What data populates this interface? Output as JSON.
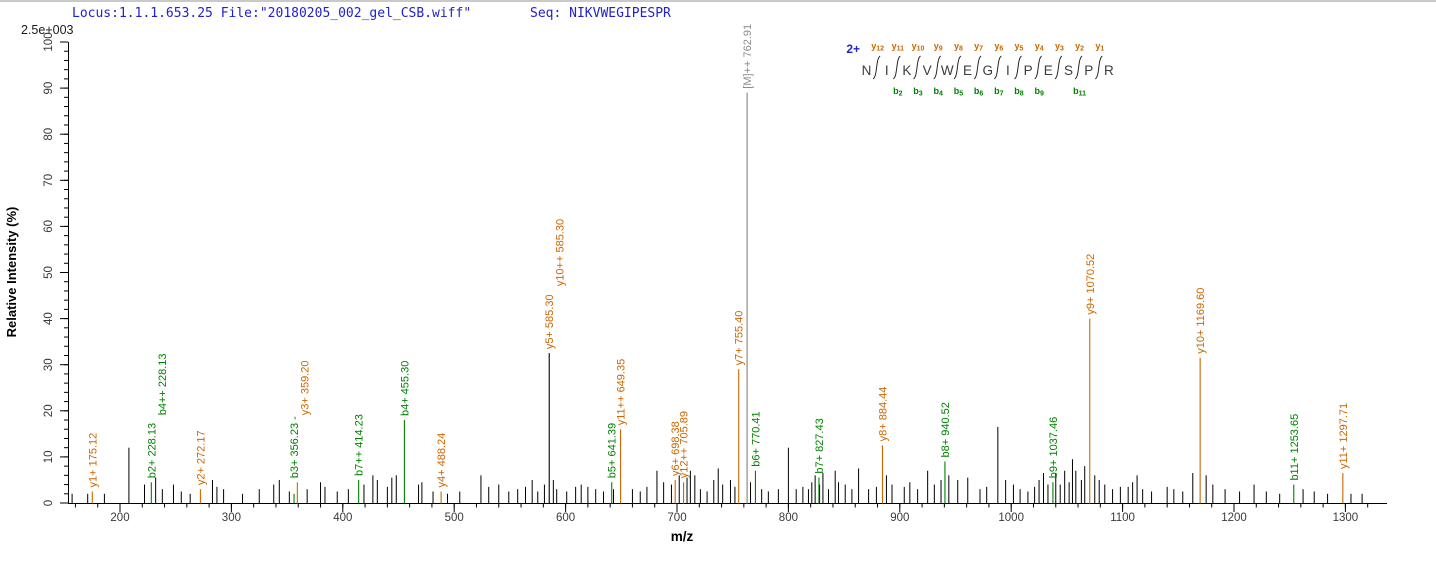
{
  "header": {
    "locus_file": "Locus:1.1.1.653.25 File:\"20180205_002_gel_CSB.wiff\"",
    "seq_line": "Seq: NIKVWEGIPESPR",
    "text_color": "#2222cc"
  },
  "scale_label": "2.5e+003",
  "colors": {
    "y_ion": "#cc6600",
    "b_ion": "#008000",
    "unassigned": "#000000",
    "precursor": "#8c8c8c",
    "axis": "#000000",
    "tick_text": "#3a3a3a",
    "residue_text": "#3c3c3c",
    "charge_text": "#2222cc"
  },
  "fragment_map": {
    "charge_label": "2+",
    "residues": [
      "N",
      "I",
      "K",
      "V",
      "W",
      "E",
      "G",
      "I",
      "P",
      "E",
      "S",
      "P",
      "R"
    ],
    "top_ions": [
      "y12",
      "y11",
      "y10",
      "y9",
      "y8",
      "y7",
      "y6",
      "y5",
      "y4",
      "y3",
      "y2",
      "y1"
    ],
    "bottom_ions": [
      "",
      "b2",
      "b3",
      "b4",
      "b5",
      "b6",
      "b7",
      "b8",
      "b9",
      "",
      "b11",
      ""
    ]
  },
  "chart_data": {
    "type": "bar",
    "subtype": "ms2_fragment_spectrum",
    "title": "",
    "xlabel": "m/z",
    "ylabel": "Relative  Intensity (%)",
    "x_range": [
      153.3,
      1337
    ],
    "ylim": [
      0,
      100
    ],
    "x_ticks": [
      200,
      300,
      400,
      500,
      600,
      700,
      800,
      900,
      1000,
      1100,
      1200,
      1300
    ],
    "x_minor_step": 20,
    "y_ticks": [
      0,
      10,
      20,
      30,
      40,
      50,
      60,
      70,
      80,
      90,
      100
    ],
    "y_minor_step": 2,
    "grid": false,
    "legend_position": "none",
    "precursor": {
      "mz": 762.91,
      "label": "[M]++ 762.91",
      "line_top_pct": 89
    },
    "annotated_peaks": [
      {
        "mz": 175.12,
        "pct": 2.5,
        "series": "y",
        "anchor_pct": 2.5,
        "labels": [
          {
            "text": "y1+ 175.12",
            "series": "y"
          }
        ]
      },
      {
        "mz": 228.13,
        "pct": 4.5,
        "series": "b",
        "anchor_pct": 4.5,
        "labels": [
          {
            "text": "b2+ 228.13",
            "series": "b"
          },
          {
            "text": "b4++ 228.13",
            "series": "b"
          }
        ]
      },
      {
        "mz": 272.17,
        "pct": 3.0,
        "series": "y",
        "anchor_pct": 3.0,
        "labels": [
          {
            "text": "y2+ 272.17",
            "series": "y"
          }
        ]
      },
      {
        "mz": 356.23,
        "pct": 2.0,
        "series": "b",
        "anchor_pct": 4.5,
        "labels": [
          {
            "text": "b3+ 356.23 -",
            "series": "b"
          },
          {
            "text": "y3+ 359.20",
            "series": "y"
          }
        ]
      },
      {
        "mz": 359.2,
        "pct": 4.5,
        "series": "y",
        "anchor_pct": 4.5,
        "labels": []
      },
      {
        "mz": 414.23,
        "pct": 5.0,
        "series": "b",
        "anchor_pct": 5.0,
        "labels": [
          {
            "text": "b7++ 414.23",
            "series": "b"
          }
        ]
      },
      {
        "mz": 455.3,
        "pct": 18.0,
        "series": "b",
        "anchor_pct": 18.0,
        "labels": [
          {
            "text": "b4+ 455.30",
            "series": "b"
          }
        ]
      },
      {
        "mz": 488.24,
        "pct": 2.5,
        "series": "y",
        "anchor_pct": 2.5,
        "labels": [
          {
            "text": "y4+ 488.24",
            "series": "y"
          }
        ]
      },
      {
        "mz": 585.3,
        "pct": 32.5,
        "series": "both",
        "anchor_pct": 32.5,
        "labels": [
          {
            "text": "y5+ 585.30",
            "series": "y"
          },
          {
            "text": "y10++ 585.30",
            "series": "y"
          }
        ]
      },
      {
        "mz": 641.39,
        "pct": 4.5,
        "series": "b",
        "anchor_pct": 4.5,
        "labels": [
          {
            "text": "b5+ 641.39",
            "series": "b"
          }
        ]
      },
      {
        "mz": 649.35,
        "pct": 16.0,
        "series": "y",
        "anchor_pct": 16.0,
        "labels": [
          {
            "text": "y11++ 649.35",
            "series": "y"
          }
        ]
      },
      {
        "mz": 698.38,
        "pct": 5.0,
        "series": "y",
        "anchor_pct": 5.0,
        "labels": [
          {
            "text": "y6+ 698.38",
            "series": "y"
          }
        ]
      },
      {
        "mz": 705.89,
        "pct": 4.5,
        "series": "y",
        "anchor_pct": 4.5,
        "labels": [
          {
            "text": "y12++ 705.89",
            "series": "y"
          }
        ]
      },
      {
        "mz": 755.4,
        "pct": 29.0,
        "series": "y",
        "anchor_pct": 29.0,
        "labels": [
          {
            "text": "y7+ 755.40",
            "series": "y"
          }
        ]
      },
      {
        "mz": 770.41,
        "pct": 7.0,
        "series": "b",
        "anchor_pct": 7.0,
        "labels": [
          {
            "text": "b6+ 770.41",
            "series": "b"
          }
        ]
      },
      {
        "mz": 827.43,
        "pct": 5.5,
        "series": "b",
        "anchor_pct": 5.5,
        "labels": [
          {
            "text": "b7+ 827.43",
            "series": "b"
          }
        ]
      },
      {
        "mz": 884.44,
        "pct": 12.5,
        "series": "y",
        "anchor_pct": 12.5,
        "labels": [
          {
            "text": "y8+ 884.44",
            "series": "y"
          }
        ]
      },
      {
        "mz": 940.52,
        "pct": 9.0,
        "series": "b",
        "anchor_pct": 9.0,
        "labels": [
          {
            "text": "b8+ 940.52",
            "series": "b"
          }
        ]
      },
      {
        "mz": 1037.46,
        "pct": 4.5,
        "series": "b",
        "anchor_pct": 4.5,
        "labels": [
          {
            "text": "b9+ 1037.46",
            "series": "b"
          }
        ]
      },
      {
        "mz": 1070.52,
        "pct": 40.0,
        "series": "y",
        "anchor_pct": 40.0,
        "labels": [
          {
            "text": "y9+ 1070.52",
            "series": "y"
          }
        ]
      },
      {
        "mz": 1169.6,
        "pct": 31.5,
        "series": "y",
        "anchor_pct": 31.5,
        "labels": [
          {
            "text": "y10+ 1169.60",
            "series": "y"
          }
        ]
      },
      {
        "mz": 1253.65,
        "pct": 4.0,
        "series": "b",
        "anchor_pct": 4.0,
        "labels": [
          {
            "text": "b11+ 1253.65",
            "series": "b"
          }
        ]
      },
      {
        "mz": 1297.71,
        "pct": 6.5,
        "series": "y",
        "anchor_pct": 6.5,
        "labels": [
          {
            "text": "y11+ 1297.71",
            "series": "y"
          }
        ]
      }
    ],
    "unassigned_peaks": [
      [
        157,
        2
      ],
      [
        171,
        2
      ],
      [
        186,
        2
      ],
      [
        208,
        12
      ],
      [
        222,
        4
      ],
      [
        232,
        5.5
      ],
      [
        238,
        3
      ],
      [
        248,
        4
      ],
      [
        255,
        2.5
      ],
      [
        263,
        2
      ],
      [
        283,
        5
      ],
      [
        287,
        3.5
      ],
      [
        293,
        3
      ],
      [
        310,
        2
      ],
      [
        325,
        3
      ],
      [
        338,
        4
      ],
      [
        343,
        5
      ],
      [
        352,
        2.5
      ],
      [
        368,
        3
      ],
      [
        380,
        4.5
      ],
      [
        384,
        3.5
      ],
      [
        395,
        2.5
      ],
      [
        405,
        3
      ],
      [
        419,
        4
      ],
      [
        427,
        6
      ],
      [
        431,
        5
      ],
      [
        440,
        3.5
      ],
      [
        444,
        5.5
      ],
      [
        448,
        6
      ],
      [
        468,
        4
      ],
      [
        471,
        4.5
      ],
      [
        481,
        2.5
      ],
      [
        494,
        2
      ],
      [
        505,
        2.5
      ],
      [
        524,
        6
      ],
      [
        531,
        3.5
      ],
      [
        540,
        4
      ],
      [
        549,
        2.5
      ],
      [
        557,
        3
      ],
      [
        564,
        3.5
      ],
      [
        570,
        5
      ],
      [
        575,
        2.5
      ],
      [
        581,
        4
      ],
      [
        589,
        5
      ],
      [
        592,
        3
      ],
      [
        601,
        2.5
      ],
      [
        609,
        3.5
      ],
      [
        614,
        4
      ],
      [
        620,
        3.5
      ],
      [
        627,
        3
      ],
      [
        634,
        2.5
      ],
      [
        643,
        3
      ],
      [
        660,
        3
      ],
      [
        667,
        2.5
      ],
      [
        673,
        3.5
      ],
      [
        682,
        7
      ],
      [
        688,
        4.5
      ],
      [
        695,
        4
      ],
      [
        702,
        6
      ],
      [
        709,
        5.5
      ],
      [
        712,
        7
      ],
      [
        716,
        6
      ],
      [
        721,
        3
      ],
      [
        727,
        2.5
      ],
      [
        733,
        5
      ],
      [
        737,
        7.5
      ],
      [
        741,
        4
      ],
      [
        748,
        5
      ],
      [
        752,
        3.5
      ],
      [
        766,
        4.5
      ],
      [
        776,
        3
      ],
      [
        782,
        2.5
      ],
      [
        791,
        3
      ],
      [
        800,
        12
      ],
      [
        807,
        3
      ],
      [
        813,
        3.5
      ],
      [
        818,
        3
      ],
      [
        821,
        4.5
      ],
      [
        824,
        6
      ],
      [
        828,
        4
      ],
      [
        831,
        6.5
      ],
      [
        836,
        3
      ],
      [
        842,
        7
      ],
      [
        845,
        4.5
      ],
      [
        851,
        4
      ],
      [
        857,
        3
      ],
      [
        863,
        7.5
      ],
      [
        872,
        3
      ],
      [
        879,
        3.5
      ],
      [
        888,
        6
      ],
      [
        893,
        4
      ],
      [
        904,
        3.5
      ],
      [
        909,
        4.5
      ],
      [
        916,
        3
      ],
      [
        925,
        7
      ],
      [
        931,
        4
      ],
      [
        937,
        5
      ],
      [
        944,
        6
      ],
      [
        952,
        5
      ],
      [
        961,
        5.5
      ],
      [
        972,
        3
      ],
      [
        978,
        3.5
      ],
      [
        988,
        16.5
      ],
      [
        995,
        5
      ],
      [
        1002,
        4
      ],
      [
        1008,
        3
      ],
      [
        1015,
        2.5
      ],
      [
        1021,
        3.5
      ],
      [
        1025,
        5
      ],
      [
        1029,
        6.5
      ],
      [
        1033,
        4
      ],
      [
        1040,
        6.5
      ],
      [
        1044,
        4
      ],
      [
        1048,
        7
      ],
      [
        1052,
        4.5
      ],
      [
        1055,
        9.5
      ],
      [
        1058,
        7
      ],
      [
        1063,
        5
      ],
      [
        1066,
        8
      ],
      [
        1075,
        6
      ],
      [
        1079,
        5
      ],
      [
        1084,
        4
      ],
      [
        1091,
        3
      ],
      [
        1098,
        3.5
      ],
      [
        1105,
        3.5
      ],
      [
        1109,
        4.5
      ],
      [
        1113,
        6
      ],
      [
        1118,
        3
      ],
      [
        1126,
        2.5
      ],
      [
        1140,
        3.5
      ],
      [
        1146,
        3
      ],
      [
        1154,
        2.5
      ],
      [
        1163,
        6.5
      ],
      [
        1175,
        6
      ],
      [
        1181,
        4
      ],
      [
        1192,
        3
      ],
      [
        1205,
        2.5
      ],
      [
        1218,
        4
      ],
      [
        1229,
        2.5
      ],
      [
        1241,
        2
      ],
      [
        1262,
        3
      ],
      [
        1272,
        2.5
      ],
      [
        1284,
        2
      ],
      [
        1305,
        2
      ],
      [
        1315,
        2
      ]
    ]
  }
}
